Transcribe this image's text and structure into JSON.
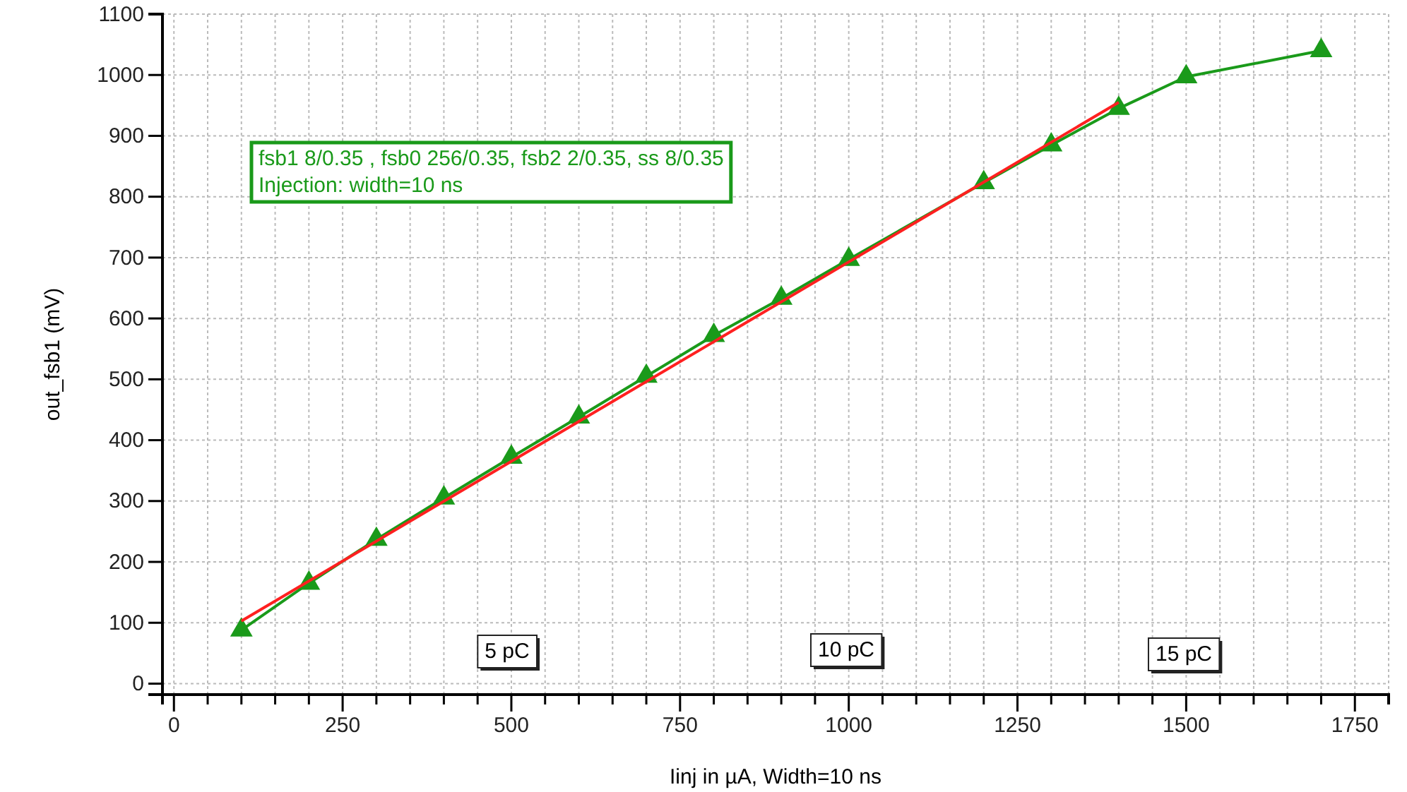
{
  "chart_data": {
    "type": "line",
    "xlabel": "Iinj in µA, Width=10 ns",
    "ylabel": "out_fsb1 (mV)",
    "xlim": [
      -17,
      1800
    ],
    "ylim": [
      -18,
      1100
    ],
    "xticks": [
      0,
      {
        "value": 50,
        "label": null
      },
      {
        "value": 100,
        "label": null
      },
      {
        "value": 150,
        "label": null
      },
      {
        "value": 200,
        "label": null
      },
      250,
      {
        "value": 300,
        "label": null
      },
      {
        "value": 350,
        "label": null
      },
      {
        "value": 400,
        "label": null
      },
      {
        "value": 450,
        "label": null
      },
      500,
      {
        "value": 550,
        "label": null
      },
      {
        "value": 600,
        "label": null
      },
      {
        "value": 650,
        "label": null
      },
      {
        "value": 700,
        "label": null
      },
      750,
      {
        "value": 800,
        "label": null
      },
      {
        "value": 850,
        "label": null
      },
      {
        "value": 900,
        "label": null
      },
      {
        "value": 950,
        "label": null
      },
      1000,
      {
        "value": 1050,
        "label": null
      },
      {
        "value": 1100,
        "label": null
      },
      {
        "value": 1150,
        "label": null
      },
      {
        "value": 1200,
        "label": null
      },
      1250,
      {
        "value": 1300,
        "label": null
      },
      {
        "value": 1350,
        "label": null
      },
      {
        "value": 1400,
        "label": null
      },
      {
        "value": 1450,
        "label": null
      },
      1500,
      {
        "value": 1550,
        "label": null
      },
      {
        "value": 1600,
        "label": null
      },
      {
        "value": 1650,
        "label": null
      },
      {
        "value": 1700,
        "label": null
      },
      1750,
      {
        "value": 1800,
        "label": null
      }
    ],
    "yticks": [
      0,
      100,
      200,
      300,
      400,
      500,
      600,
      700,
      800,
      900,
      1000,
      1100
    ],
    "grid": true,
    "series": [
      {
        "color": "#1a9a1a",
        "marker": "triangle",
        "x": [
          100,
          200,
          300,
          400,
          500,
          600,
          700,
          800,
          900,
          1000,
          1200,
          1300,
          1400,
          1500,
          1700
        ],
        "values": [
          88,
          165,
          237,
          305,
          372,
          438,
          505,
          572,
          633,
          697,
          823,
          885,
          945,
          997,
          1040
        ]
      },
      {
        "color": "#ff2020",
        "marker": "none",
        "x": [
          100,
          1400
        ],
        "values": [
          103,
          955
        ]
      }
    ],
    "annotations": [
      "fsb1 8/0.35 , fsb0 256/0.35, fsb2 2/0.35, ss 8/0.35\nInjection: width=10 ns",
      "5 pC",
      "10 pC",
      "15 pC"
    ]
  }
}
